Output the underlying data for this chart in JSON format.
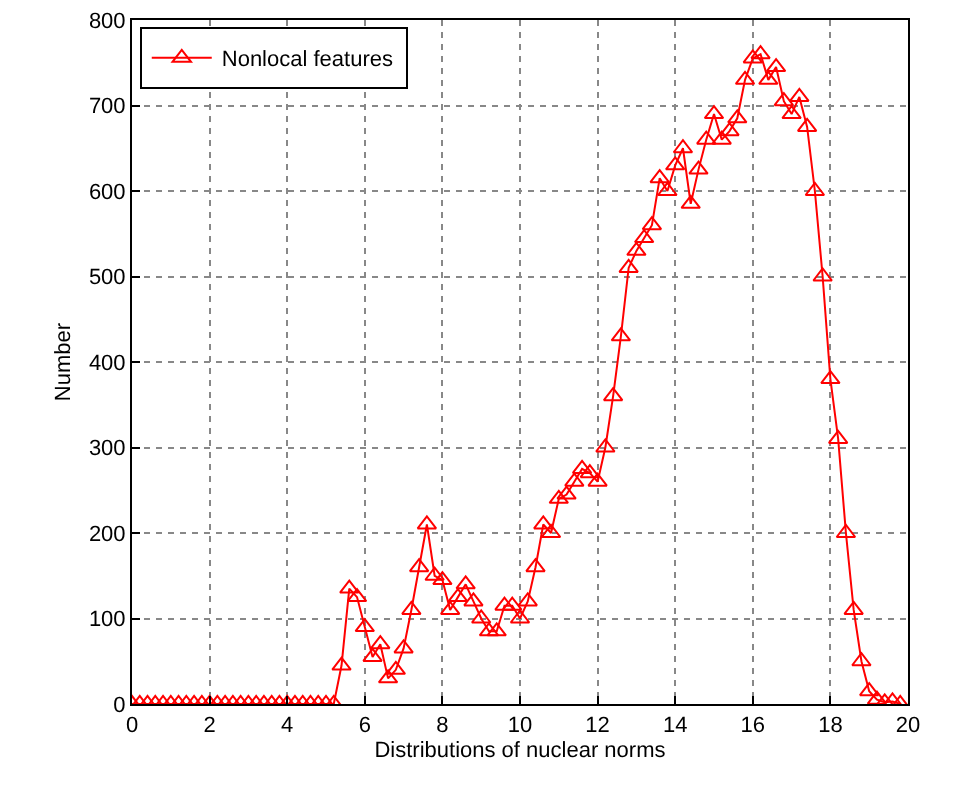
{
  "chart_data": {
    "type": "line",
    "xlabel": "Distributions of nuclear norms",
    "ylabel": "Number",
    "x": [
      0,
      0.2,
      0.4,
      0.6,
      0.8,
      1,
      1.2,
      1.4,
      1.6,
      1.8,
      2,
      2.2,
      2.4,
      2.6,
      2.8,
      3,
      3.2,
      3.4,
      3.6,
      3.8,
      4,
      4.2,
      4.4,
      4.6,
      4.8,
      5,
      5.2,
      5.4,
      5.6,
      5.8,
      6,
      6.2,
      6.4,
      6.6,
      6.8,
      7,
      7.2,
      7.4,
      7.6,
      7.8,
      8,
      8.2,
      8.4,
      8.6,
      8.8,
      9,
      9.2,
      9.4,
      9.6,
      9.8,
      10,
      10.2,
      10.4,
      10.6,
      10.8,
      11,
      11.2,
      11.4,
      11.6,
      11.8,
      12,
      12.2,
      12.4,
      12.6,
      12.8,
      13,
      13.2,
      13.4,
      13.6,
      13.8,
      14,
      14.2,
      14.4,
      14.6,
      14.8,
      15,
      15.2,
      15.4,
      15.6,
      15.8,
      16,
      16.2,
      16.4,
      16.6,
      16.8,
      17,
      17.2,
      17.4,
      17.6,
      17.8,
      18,
      18.2,
      18.4,
      18.6,
      18.8,
      19,
      19.2,
      19.4,
      19.6,
      19.8
    ],
    "series": [
      {
        "name": "Nonlocal features",
        "color": "#ff0000",
        "values": [
          0,
          0,
          0,
          0,
          0,
          0,
          0,
          0,
          0,
          0,
          0,
          0,
          0,
          0,
          0,
          0,
          0,
          0,
          0,
          0,
          0,
          0,
          0,
          0,
          0,
          0,
          0,
          45,
          135,
          125,
          90,
          55,
          70,
          30,
          40,
          65,
          110,
          160,
          210,
          150,
          145,
          110,
          125,
          140,
          120,
          100,
          85,
          85,
          115,
          115,
          100,
          120,
          160,
          210,
          200,
          240,
          245,
          260,
          275,
          270,
          260,
          300,
          360,
          430,
          510,
          530,
          545,
          560,
          615,
          600,
          630,
          650,
          585,
          625,
          660,
          690,
          660,
          670,
          685,
          730,
          755,
          760,
          730,
          745,
          705,
          690,
          710,
          675,
          600,
          500,
          380,
          310,
          200,
          110,
          50,
          15,
          5,
          2,
          3,
          0
        ]
      }
    ],
    "xlim": [
      0,
      20
    ],
    "xticks": [
      0,
      2,
      4,
      6,
      8,
      10,
      12,
      14,
      16,
      18,
      20
    ],
    "ylim": [
      0,
      800
    ],
    "yticks": [
      0,
      100,
      200,
      300,
      400,
      500,
      600,
      700,
      800
    ],
    "grid": true,
    "legend": "top left",
    "marker": "triangle",
    "line_style": "solid"
  }
}
